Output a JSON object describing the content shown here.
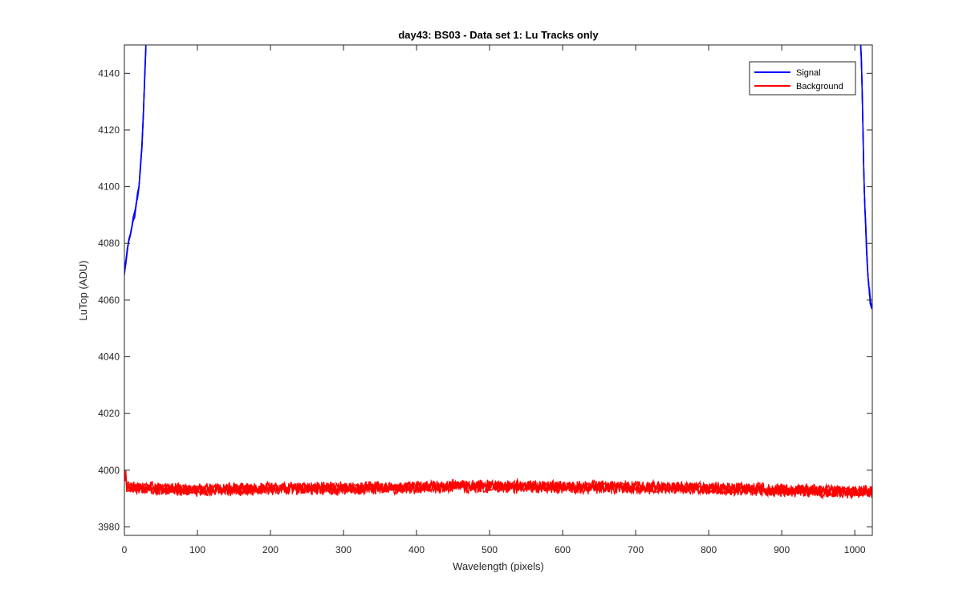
{
  "chart_data": {
    "type": "line",
    "title": "day43: BS03 - Data set 1: Lu Tracks only",
    "xlabel": "Wavelength (pixels)",
    "ylabel": "LuTop (ADU)",
    "xlim": [
      0,
      1024
    ],
    "ylim": [
      3977,
      4150
    ],
    "xticks": [
      0,
      100,
      200,
      300,
      400,
      500,
      600,
      700,
      800,
      900,
      1000
    ],
    "yticks": [
      3980,
      4000,
      4020,
      4040,
      4060,
      4080,
      4100,
      4120,
      4140
    ],
    "grid": false,
    "legend_position": "top-right",
    "series": [
      {
        "name": "Signal",
        "color": "#0000ff",
        "segments": [
          {
            "x": [
              0,
              2,
              4,
              6,
              8,
              10,
              12,
              14,
              16,
              18,
              20,
              22,
              24,
              26,
              28,
              29.5
            ],
            "y": [
              4070,
              4073,
              4078,
              4081,
              4082,
              4085,
              4088,
              4090,
              4093,
              4097,
              4101,
              4107,
              4114,
              4125,
              4140,
              4150
            ]
          },
          {
            "x": [
              1008,
              1009,
              1010,
              1011,
              1012,
              1013,
              1014,
              1015,
              1016,
              1017,
              1018,
              1019,
              1020,
              1021,
              1022,
              1023,
              1024
            ],
            "y": [
              4150,
              4145,
              4135,
              4122,
              4110,
              4100,
              4092,
              4086,
              4079,
              4073,
              4068,
              4066,
              4063,
              4060,
              4059,
              4058,
              4057
            ]
          }
        ]
      },
      {
        "name": "Background",
        "color": "#ff0000",
        "trend": {
          "x": [
            0,
            100,
            200,
            300,
            400,
            500,
            600,
            700,
            800,
            900,
            1000,
            1024
          ],
          "y": [
            3994,
            3993,
            3993.5,
            3993.5,
            3994,
            3994.5,
            3994,
            3994,
            3993.5,
            3993,
            3992.5,
            3992.5
          ]
        },
        "noise_amplitude": 2.2,
        "traces": 4
      }
    ]
  }
}
